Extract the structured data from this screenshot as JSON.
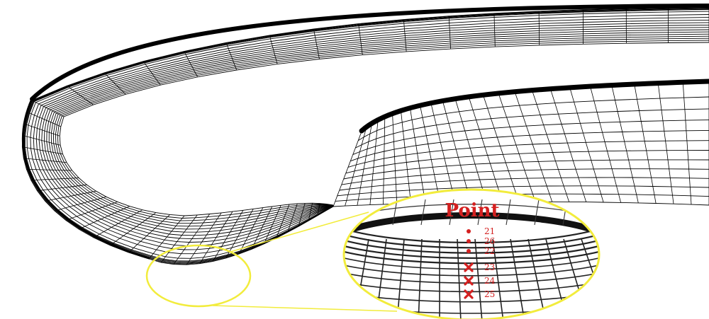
{
  "zoom": {
    "title": "Point",
    "points": [
      {
        "id": "21",
        "marker": "dot"
      },
      {
        "id": "26",
        "marker": "dot"
      },
      {
        "id": "22",
        "marker": "dot"
      },
      {
        "id": "23",
        "marker": "cross"
      },
      {
        "id": "24",
        "marker": "cross"
      },
      {
        "id": "25",
        "marker": "cross"
      }
    ]
  },
  "colors": {
    "mesh": "#000000",
    "highlight": "#f2ec3c",
    "label": "#d42020",
    "background": "#ffffff"
  }
}
